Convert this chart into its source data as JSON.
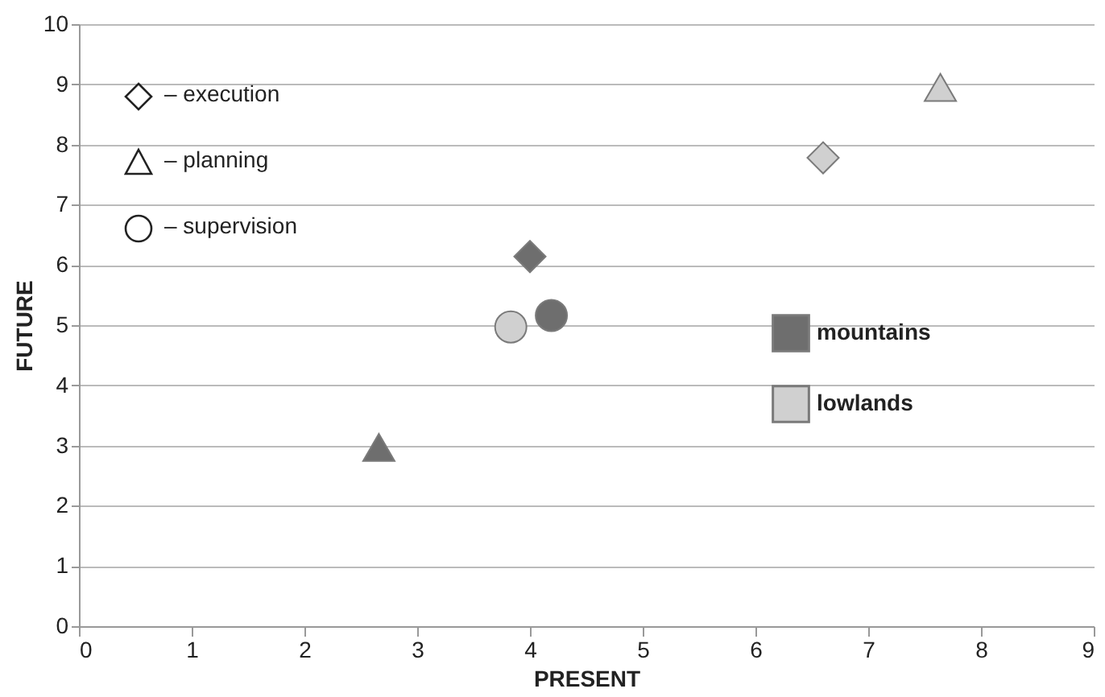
{
  "chart_data": {
    "type": "scatter",
    "xlabel": "PRESENT",
    "ylabel": "FUTURE",
    "xlim": [
      0,
      9
    ],
    "ylim": [
      0,
      10
    ],
    "xticks": [
      0,
      1,
      2,
      3,
      4,
      5,
      6,
      7,
      8,
      9
    ],
    "yticks": [
      0,
      1,
      2,
      3,
      4,
      5,
      6,
      7,
      8,
      9,
      10
    ],
    "grid": "y",
    "legend": "right",
    "annotations": [
      "– execution",
      "– planning",
      "– supervision"
    ],
    "series": [
      {
        "name": "mountains",
        "color": "#6e6e6e",
        "x": [
          4.0,
          2.66,
          4.19
        ],
        "values": [
          6.14,
          2.97,
          5.16
        ]
      },
      {
        "name": "lowlands",
        "color": "#d0d0d0",
        "x": [
          6.6,
          7.64,
          3.83
        ],
        "values": [
          7.78,
          8.95,
          4.97
        ]
      }
    ]
  }
}
